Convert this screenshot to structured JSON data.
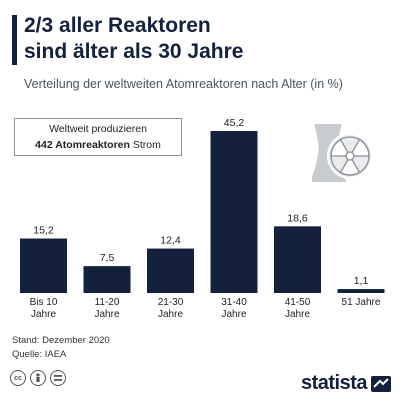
{
  "title_line1": "2/3 aller Reaktoren",
  "title_line2": "sind älter als 30 Jahre",
  "subtitle": "Verteilung der weltweiten Atomreaktoren nach Alter (in %)",
  "info": {
    "line1": "Weltweit produzieren",
    "line2_bold": "442 Atomreaktoren",
    "line2_rest": " Strom"
  },
  "source": {
    "stand": "Stand: Dezember 2020",
    "quelle": "Quelle: IAEA"
  },
  "brand": "statista",
  "icons": [
    "cc-icon",
    "person-icon",
    "equals-icon",
    "radiation-cooling-tower-icon",
    "statista-logo-icon"
  ],
  "colors": {
    "bar": "#14213d",
    "title": "#14213d",
    "background": "#ffffff"
  },
  "chart_data": {
    "type": "bar",
    "categories": [
      [
        "Bis 10",
        "Jahre"
      ],
      [
        "11-20",
        "Jahre"
      ],
      [
        "21-30",
        "Jahre"
      ],
      [
        "31-40",
        "Jahre"
      ],
      [
        "41-50",
        "Jahre"
      ],
      [
        "51 Jahre"
      ]
    ],
    "values": [
      15.2,
      7.5,
      12.4,
      45.2,
      18.6,
      1.1
    ],
    "labels": [
      "15,2",
      "7,5",
      "12,4",
      "45,2",
      "18,6",
      "1,1"
    ],
    "title": "2/3 aller Reaktoren sind älter als 30 Jahre",
    "subtitle": "Verteilung der weltweiten Atomreaktoren nach Alter (in %)",
    "ylim": [
      0,
      45.2
    ],
    "grid": false,
    "legend": "none"
  }
}
